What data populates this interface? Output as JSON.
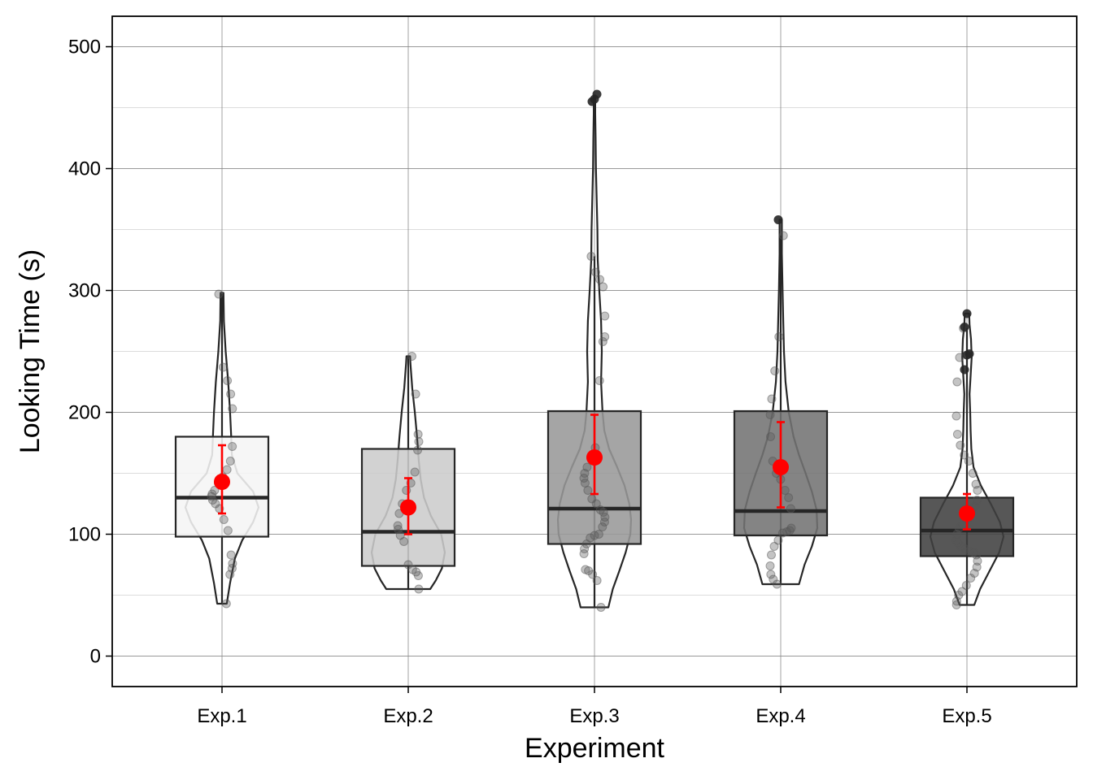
{
  "chart_data": {
    "type": "violin-box",
    "xlabel": "Experiment",
    "ylabel": "Looking Time (s)",
    "ylim": [
      -25,
      525
    ],
    "yticks": [
      0,
      100,
      200,
      300,
      400,
      500
    ],
    "grid": true,
    "colors": {
      "mean": "#ff0000",
      "outline": "#262626",
      "grid": "#808080"
    },
    "groups": [
      {
        "name": "Exp.1",
        "fill": "#f5f5f5",
        "violin": {
          "min": 43,
          "max": 298,
          "density": [
            [
              43,
              0.13
            ],
            [
              60,
              0.22
            ],
            [
              80,
              0.35
            ],
            [
              95,
              0.55
            ],
            [
              110,
              0.85
            ],
            [
              122,
              1.0
            ],
            [
              135,
              0.85
            ],
            [
              150,
              0.42
            ],
            [
              165,
              0.27
            ],
            [
              180,
              0.25
            ],
            [
              200,
              0.22
            ],
            [
              225,
              0.17
            ],
            [
              250,
              0.1
            ],
            [
              275,
              0.05
            ],
            [
              298,
              0.04
            ]
          ]
        },
        "box": {
          "q1": 98,
          "median": 130,
          "q3": 180
        },
        "mean": 143,
        "ci": [
          117,
          173
        ],
        "points": [
          43,
          67,
          72,
          76,
          83,
          103,
          112,
          121,
          125,
          128,
          131,
          133,
          136,
          142,
          147,
          153,
          160,
          172,
          203,
          215,
          226,
          237,
          297
        ],
        "outliers": []
      },
      {
        "name": "Exp.2",
        "fill": "#cccccc",
        "violin": {
          "min": 55,
          "max": 246,
          "density": [
            [
              55,
              0.6
            ],
            [
              62,
              0.75
            ],
            [
              72,
              0.92
            ],
            [
              85,
              1.0
            ],
            [
              100,
              0.9
            ],
            [
              115,
              0.62
            ],
            [
              130,
              0.43
            ],
            [
              145,
              0.34
            ],
            [
              160,
              0.29
            ],
            [
              180,
              0.24
            ],
            [
              200,
              0.18
            ],
            [
              220,
              0.11
            ],
            [
              240,
              0.06
            ],
            [
              246,
              0.05
            ]
          ]
        },
        "box": {
          "q1": 74,
          "median": 102,
          "q3": 170
        },
        "mean": 122,
        "ci": [
          100,
          146
        ],
        "points": [
          55,
          66,
          69,
          71,
          75,
          94,
          99,
          104,
          107,
          117,
          125,
          136,
          142,
          151,
          169,
          176,
          182,
          215,
          246
        ],
        "outliers": []
      },
      {
        "name": "Exp.3",
        "fill": "#999999",
        "violin": {
          "min": 40,
          "max": 460,
          "density": [
            [
              40,
              0.38
            ],
            [
              55,
              0.5
            ],
            [
              70,
              0.68
            ],
            [
              85,
              0.85
            ],
            [
              100,
              0.98
            ],
            [
              112,
              1.0
            ],
            [
              125,
              0.95
            ],
            [
              140,
              0.82
            ],
            [
              155,
              0.62
            ],
            [
              170,
              0.4
            ],
            [
              185,
              0.27
            ],
            [
              200,
              0.22
            ],
            [
              225,
              0.18
            ],
            [
              250,
              0.2
            ],
            [
              275,
              0.18
            ],
            [
              300,
              0.13
            ],
            [
              325,
              0.09
            ],
            [
              350,
              0.08
            ],
            [
              375,
              0.06
            ],
            [
              400,
              0.04
            ],
            [
              425,
              0.03
            ],
            [
              445,
              0.02
            ],
            [
              460,
              0.02
            ]
          ]
        },
        "box": {
          "q1": 92,
          "median": 121,
          "q3": 201
        },
        "mean": 163,
        "ci": [
          133,
          198
        ],
        "points": [
          40,
          62,
          67,
          70,
          71,
          84,
          88,
          92,
          97,
          99,
          100,
          106,
          110,
          114,
          118,
          120,
          125,
          129,
          136,
          142,
          146,
          150,
          155,
          163,
          171,
          226,
          258,
          262,
          279,
          303,
          309,
          315,
          328
        ],
        "outliers": [
          455,
          457,
          461
        ]
      },
      {
        "name": "Exp.4",
        "fill": "#737373",
        "violin": {
          "min": 59,
          "max": 358,
          "density": [
            [
              59,
              0.5
            ],
            [
              75,
              0.65
            ],
            [
              90,
              0.85
            ],
            [
              105,
              1.0
            ],
            [
              120,
              0.98
            ],
            [
              135,
              0.85
            ],
            [
              150,
              0.68
            ],
            [
              165,
              0.5
            ],
            [
              180,
              0.35
            ],
            [
              200,
              0.22
            ],
            [
              225,
              0.13
            ],
            [
              250,
              0.09
            ],
            [
              275,
              0.07
            ],
            [
              300,
              0.05
            ],
            [
              330,
              0.03
            ],
            [
              358,
              0.03
            ]
          ]
        },
        "box": {
          "q1": 99,
          "median": 119,
          "q3": 201
        },
        "mean": 155,
        "ci": [
          122,
          192
        ],
        "points": [
          59,
          63,
          67,
          74,
          83,
          90,
          95,
          101,
          102,
          103,
          105,
          121,
          130,
          136,
          145,
          150,
          160,
          180,
          198,
          211,
          234,
          262,
          345
        ],
        "outliers": [
          358
        ]
      },
      {
        "name": "Exp.5",
        "fill": "#404040",
        "violin": {
          "min": 42,
          "max": 281,
          "density": [
            [
              42,
              0.2
            ],
            [
              55,
              0.36
            ],
            [
              70,
              0.62
            ],
            [
              85,
              0.88
            ],
            [
              98,
              1.0
            ],
            [
              110,
              0.9
            ],
            [
              125,
              0.65
            ],
            [
              140,
              0.38
            ],
            [
              155,
              0.18
            ],
            [
              170,
              0.12
            ],
            [
              185,
              0.1
            ],
            [
              200,
              0.09
            ],
            [
              215,
              0.07
            ],
            [
              230,
              0.1
            ],
            [
              245,
              0.13
            ],
            [
              260,
              0.11
            ],
            [
              272,
              0.07
            ],
            [
              281,
              0.06
            ]
          ]
        },
        "box": {
          "q1": 82,
          "median": 103,
          "q3": 130
        },
        "mean": 117,
        "ci": [
          104,
          133
        ],
        "points": [
          42,
          45,
          50,
          53,
          58,
          64,
          68,
          73,
          78,
          83,
          85,
          86,
          88,
          90,
          93,
          95,
          100,
          105,
          108,
          112,
          118,
          123,
          128,
          136,
          141,
          150,
          160,
          165,
          173,
          182,
          197,
          225,
          245,
          269
        ],
        "outliers": [
          235,
          247,
          248,
          270,
          281
        ]
      }
    ]
  }
}
